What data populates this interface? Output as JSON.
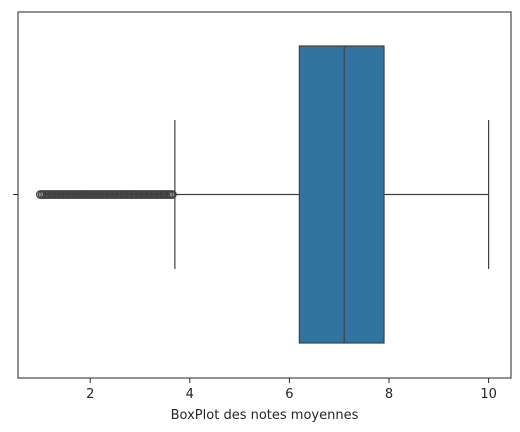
{
  "chart_data": {
    "type": "box",
    "orientation": "horizontal",
    "title": "",
    "xlabel": "BoxPlot des notes moyennes",
    "ylabel": "",
    "xlim": [
      0.55,
      10.45
    ],
    "xticks": [
      2,
      4,
      6,
      8,
      10
    ],
    "xtick_labels": [
      "2",
      "4",
      "6",
      "8",
      "10"
    ],
    "grid": false,
    "box": {
      "whisker_low": 3.7,
      "q1": 6.2,
      "median": 7.1,
      "q3": 7.9,
      "whisker_high": 10.0,
      "outlier_range": [
        1.0,
        3.65
      ]
    },
    "colors": {
      "box_fill": "#3274a1",
      "line": "#404040",
      "axis": "#262626"
    }
  }
}
